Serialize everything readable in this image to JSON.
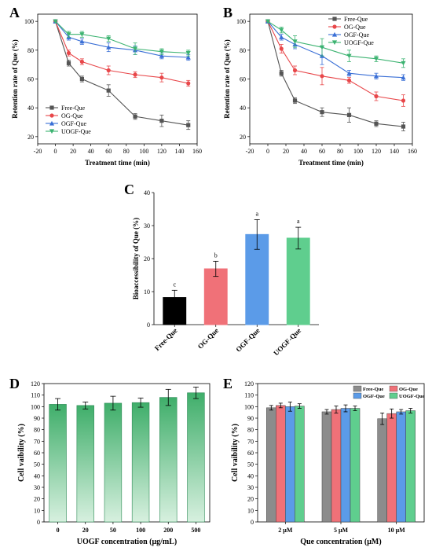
{
  "chart_data": [
    {
      "panel": "A",
      "type": "line",
      "xlabel": "Treatment time (min)",
      "ylabel": "Retention rate of Que (%)",
      "xlim": [
        -20,
        160
      ],
      "ylim": [
        15,
        105
      ],
      "xticks": [
        -20,
        0,
        20,
        40,
        60,
        80,
        100,
        120,
        140,
        160
      ],
      "yticks": [
        20,
        40,
        60,
        80,
        100
      ],
      "legend_position": "bottom-left",
      "x": [
        0,
        15,
        30,
        60,
        90,
        120,
        150
      ],
      "series": [
        {
          "name": "Free-Que",
          "color": "#555555",
          "marker": "square",
          "values": [
            100,
            71,
            60,
            52,
            34,
            31,
            28
          ],
          "errors": [
            0,
            2,
            2,
            4,
            2,
            4,
            3
          ]
        },
        {
          "name": "OG-Que",
          "color": "#e8474a",
          "marker": "circle",
          "values": [
            100,
            78,
            72,
            66,
            63,
            61,
            57
          ],
          "errors": [
            0,
            2,
            2,
            3,
            2,
            3,
            2
          ]
        },
        {
          "name": "OGF-Que",
          "color": "#3a6fd6",
          "marker": "triangle-up",
          "values": [
            100,
            89,
            86,
            82,
            80,
            76,
            75
          ],
          "errors": [
            0,
            2,
            2,
            3,
            3,
            2,
            2
          ]
        },
        {
          "name": "UOGF-Que",
          "color": "#3cb371",
          "marker": "triangle-down",
          "values": [
            100,
            91,
            91,
            88,
            81,
            79,
            78
          ],
          "errors": [
            0,
            2,
            2,
            2,
            4,
            2,
            2
          ]
        }
      ]
    },
    {
      "panel": "B",
      "type": "line",
      "xlabel": "Treatment time (min)",
      "ylabel": "Retention rate of Que (%)",
      "xlim": [
        -20,
        160
      ],
      "ylim": [
        15,
        105
      ],
      "xticks": [
        -20,
        0,
        20,
        40,
        60,
        80,
        100,
        120,
        140,
        160
      ],
      "yticks": [
        20,
        40,
        60,
        80,
        100
      ],
      "legend_position": "top-right",
      "x": [
        0,
        15,
        30,
        60,
        90,
        120,
        150
      ],
      "series": [
        {
          "name": "Free-Que",
          "color": "#555555",
          "marker": "square",
          "values": [
            100,
            64,
            45,
            37,
            35,
            29,
            27
          ],
          "errors": [
            0,
            2,
            2,
            3,
            5,
            2,
            3
          ]
        },
        {
          "name": "OG-Que",
          "color": "#e8474a",
          "marker": "circle",
          "values": [
            100,
            81,
            66,
            62,
            59,
            48,
            45
          ],
          "errors": [
            0,
            3,
            3,
            6,
            2,
            3,
            4
          ]
        },
        {
          "name": "OGF-Que",
          "color": "#3a6fd6",
          "marker": "triangle-up",
          "values": [
            100,
            89,
            84,
            76,
            64,
            62,
            61
          ],
          "errors": [
            0,
            2,
            3,
            6,
            2,
            2,
            2
          ]
        },
        {
          "name": "UOGF-Que",
          "color": "#3cb371",
          "marker": "triangle-down",
          "values": [
            100,
            94,
            86,
            82,
            76,
            74,
            71
          ],
          "errors": [
            0,
            2,
            4,
            6,
            4,
            2,
            3
          ]
        }
      ]
    },
    {
      "panel": "C",
      "type": "bar",
      "ylabel": "Bioaccessibility of Que (%)",
      "ylim": [
        0,
        40
      ],
      "yticks": [
        0,
        10,
        20,
        30,
        40
      ],
      "categories": [
        "Free-Que",
        "OG-Que",
        "OGF-Que",
        "UOGF-Que"
      ],
      "values": [
        8.2,
        16.9,
        27.3,
        26.2
      ],
      "errors": [
        2.2,
        2.3,
        4.5,
        3.3
      ],
      "colors": [
        "#000000",
        "#f07178",
        "#5b9be8",
        "#5fce8e"
      ],
      "significance": [
        "c",
        "b",
        "a",
        "a"
      ]
    },
    {
      "panel": "D",
      "type": "bar",
      "xlabel": "UOGF concentration (μg/mL)",
      "ylabel": "Cell vaibility (%)",
      "ylim": [
        0,
        120
      ],
      "yticks": [
        0,
        10,
        20,
        30,
        40,
        50,
        60,
        70,
        80,
        90,
        100,
        110,
        120
      ],
      "categories": [
        "0",
        "20",
        "50",
        "100",
        "200",
        "500"
      ],
      "values": [
        102,
        101,
        103,
        103.5,
        108,
        112
      ],
      "errors": [
        5,
        3,
        6,
        4,
        7,
        5
      ],
      "colors": [
        "#3fae6a"
      ]
    },
    {
      "panel": "E",
      "type": "bar",
      "xlabel": "Que concentration (μM)",
      "ylabel": "Cell vaibility (%)",
      "ylim": [
        0,
        120
      ],
      "yticks": [
        0,
        10,
        20,
        30,
        40,
        50,
        60,
        70,
        80,
        90,
        100,
        110,
        120
      ],
      "categories": [
        "2 μM",
        "5 μM",
        "10 μM"
      ],
      "legend_position": "top-right",
      "series": [
        {
          "name": "Free-Que",
          "color": "#8c8c8c",
          "values": [
            99,
            95.5,
            89.5
          ],
          "errors": [
            2,
            2,
            5
          ]
        },
        {
          "name": "OG-Que",
          "color": "#f07178",
          "values": [
            101,
            97.5,
            94
          ],
          "errors": [
            2,
            3,
            4
          ]
        },
        {
          "name": "OGF-Que",
          "color": "#5b9be8",
          "values": [
            100,
            98.5,
            95.5
          ],
          "errors": [
            4,
            3,
            2
          ]
        },
        {
          "name": "UOGF-Que",
          "color": "#5fce8e",
          "values": [
            100.5,
            98.5,
            96.5
          ],
          "errors": [
            2,
            2,
            2
          ]
        }
      ]
    }
  ]
}
